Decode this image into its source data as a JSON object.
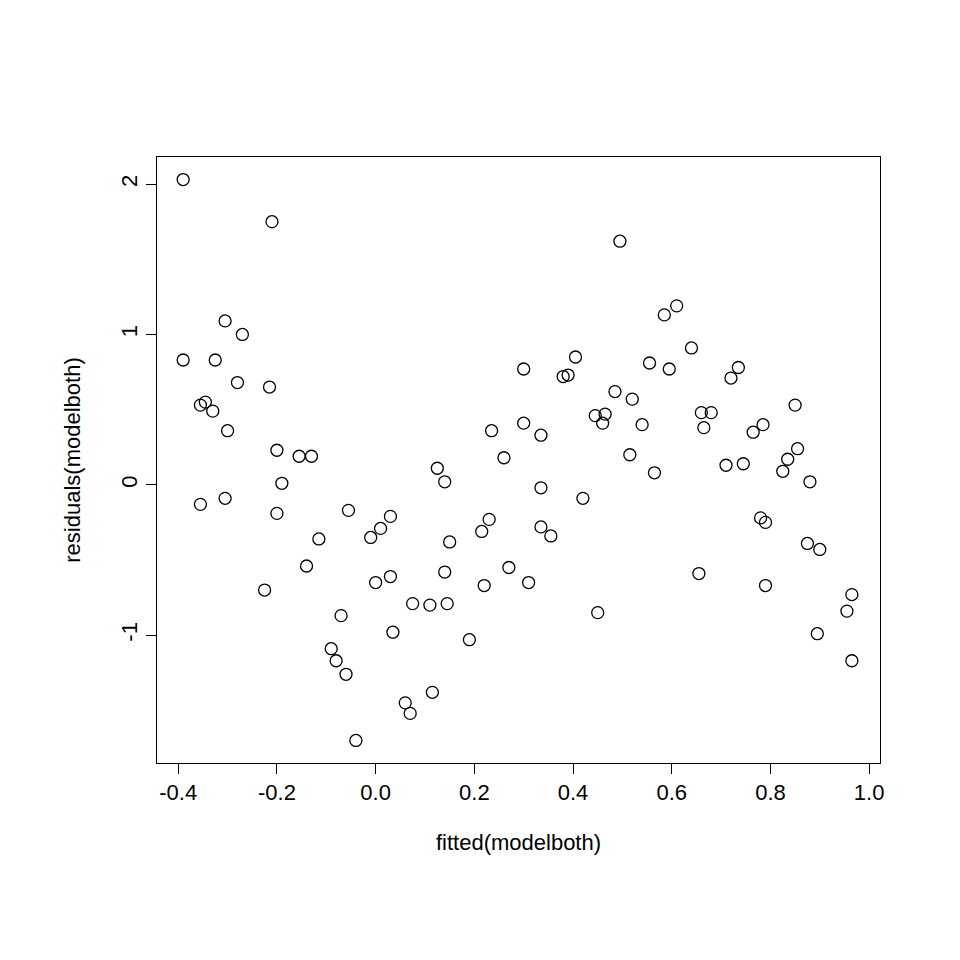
{
  "chart_data": {
    "type": "scatter",
    "x_label": "fitted(modelboth)",
    "y_label": "residuals(modelboth)",
    "color": "#000000",
    "marker": "circle-open",
    "grid": false,
    "x": [
      -0.39,
      -0.39,
      -0.355,
      -0.345,
      -0.355,
      -0.33,
      -0.325,
      -0.305,
      -0.3,
      -0.305,
      -0.27,
      -0.28,
      -0.21,
      -0.215,
      -0.225,
      -0.2,
      -0.2,
      -0.19,
      -0.155,
      -0.13,
      -0.14,
      -0.115,
      -0.09,
      -0.08,
      -0.07,
      -0.06,
      -0.055,
      -0.04,
      -0.01,
      0.0,
      0.01,
      0.03,
      0.03,
      0.035,
      0.06,
      0.07,
      0.075,
      0.11,
      0.115,
      0.125,
      0.14,
      0.14,
      0.145,
      0.15,
      0.19,
      0.215,
      0.22,
      0.23,
      0.235,
      0.26,
      0.27,
      0.3,
      0.3,
      0.31,
      0.335,
      0.335,
      0.335,
      0.355,
      0.38,
      0.39,
      0.405,
      0.42,
      0.445,
      0.45,
      0.46,
      0.465,
      0.485,
      0.495,
      0.515,
      0.52,
      0.54,
      0.555,
      0.565,
      0.585,
      0.595,
      0.61,
      0.64,
      0.655,
      0.66,
      0.665,
      0.68,
      0.71,
      0.72,
      0.735,
      0.745,
      0.765,
      0.78,
      0.785,
      0.79,
      0.79,
      0.825,
      0.835,
      0.85,
      0.855,
      0.875,
      0.88,
      0.895,
      0.9,
      0.955,
      0.965,
      0.965
    ],
    "values": [
      2.03,
      0.83,
      0.53,
      0.55,
      -0.13,
      0.49,
      0.83,
      1.09,
      0.36,
      -0.09,
      1.0,
      0.68,
      1.75,
      0.65,
      -0.7,
      0.23,
      -0.19,
      0.01,
      0.19,
      0.19,
      -0.54,
      -0.36,
      -1.09,
      -1.17,
      -0.87,
      -1.26,
      -0.17,
      -1.7,
      -0.35,
      -0.65,
      -0.29,
      -0.21,
      -0.61,
      -0.98,
      -1.45,
      -1.52,
      -0.79,
      -0.8,
      -1.38,
      0.11,
      0.02,
      -0.58,
      -0.79,
      -0.38,
      -1.03,
      -0.31,
      -0.67,
      -0.23,
      0.36,
      0.18,
      -0.55,
      0.77,
      0.41,
      -0.65,
      0.33,
      -0.02,
      -0.28,
      -0.34,
      0.72,
      0.73,
      0.85,
      -0.09,
      0.46,
      -0.85,
      0.41,
      0.47,
      0.62,
      1.62,
      0.2,
      0.57,
      0.4,
      0.81,
      0.08,
      1.13,
      0.77,
      1.19,
      0.91,
      -0.59,
      0.48,
      0.38,
      0.48,
      0.13,
      0.71,
      0.78,
      0.14,
      0.35,
      -0.22,
      0.4,
      -0.25,
      -0.67,
      0.09,
      0.17,
      0.53,
      0.24,
      -0.39,
      0.02,
      -0.99,
      -0.43,
      -0.84,
      -0.73,
      -1.17
    ],
    "xlim": [
      -0.443,
      1.022
    ],
    "ylim": [
      -1.85,
      2.18
    ],
    "xticks": [
      -0.4,
      -0.2,
      {
        "value": 0,
        "label": "0.0"
      },
      0.2,
      0.4,
      0.6,
      0.8,
      {
        "value": 1,
        "label": "1.0"
      }
    ],
    "yticks": [
      -1,
      0,
      1,
      2
    ]
  }
}
